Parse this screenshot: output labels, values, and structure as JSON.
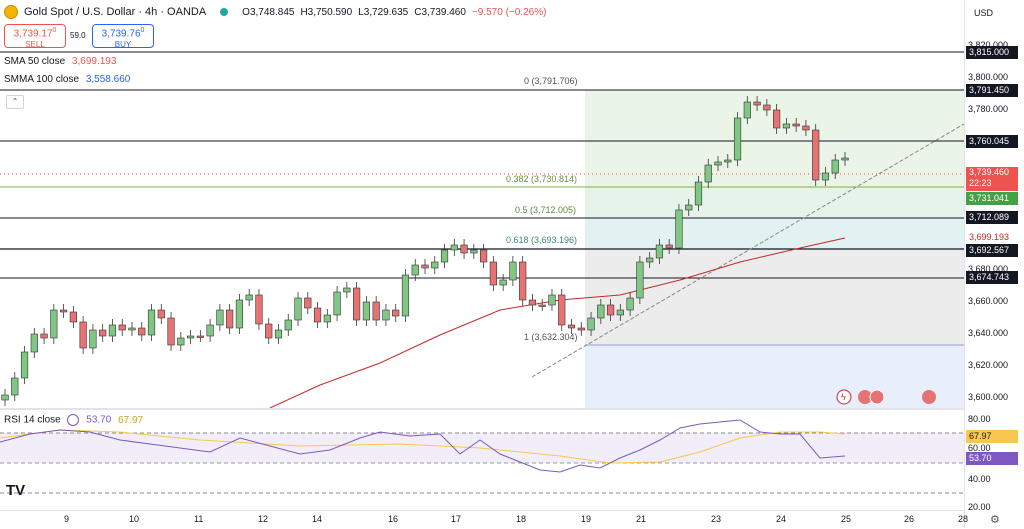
{
  "header": {
    "symbol": "Gold Spot / U.S. Dollar · 4h · OANDA",
    "open": "O3,748.845",
    "high": "H3,750.590",
    "low": "L3,729.635",
    "close": "C3,739.460",
    "change": "−9.570 (−0.26%)",
    "currency": "USD"
  },
  "trade": {
    "sell_price": "3,739.17",
    "sell_sup": "0",
    "sell_label": "SELL",
    "spread": "59.0",
    "buy_price": "3,739.76",
    "buy_sup": "0",
    "buy_label": "BUY"
  },
  "indicators": {
    "sma50_label": "SMA 50 close",
    "sma50_value": "3,699.193",
    "smma100_label": "SMMA 100 close",
    "smma100_value": "3,558.660"
  },
  "fib": {
    "level0": "0 (3,791.706)",
    "level0382": "0.382 (3,730.814)",
    "level05": "0.5 (3,712.005)",
    "level0618": "0.618 (3,693.196)",
    "level1": "1 (3,632.304)"
  },
  "price_axis": {
    "ticks": [
      "3,820.000",
      "3,800.000",
      "3,780.000",
      "3,720.000",
      "3,680.000",
      "3,660.000",
      "3,640.000",
      "3,620.000",
      "3,600.000"
    ],
    "tags": {
      "l3815": "3,815.000",
      "l3791": "3,791.450",
      "l3760": "3,760.045",
      "current": "3,739.460",
      "countdown": "22:23",
      "l3731": "3,731.041",
      "l3712": "3,712.089",
      "sma": "3,699.193",
      "l3692": "3,692.567",
      "l3674": "3,674.743"
    }
  },
  "rsi": {
    "label": "RSI 14 close",
    "value1": "53.70",
    "value2": "67.97",
    "ticks": [
      "80.00",
      "60.00",
      "40.00",
      "20.00"
    ],
    "tag1": "67.97",
    "tag2": "53.70"
  },
  "time_axis": [
    "9",
    "10",
    "11",
    "12",
    "14",
    "16",
    "17",
    "18",
    "19",
    "21",
    "23",
    "24",
    "25",
    "26",
    "28"
  ],
  "colors": {
    "up": "#26a69a",
    "down": "#ef5350",
    "candle_up_fill": "#81c784",
    "candle_down_fill": "#e57373",
    "sma": "#c62828",
    "rsi": "#7e57c2",
    "rsi_ma": "#f9c74f"
  },
  "logo": "TV"
}
